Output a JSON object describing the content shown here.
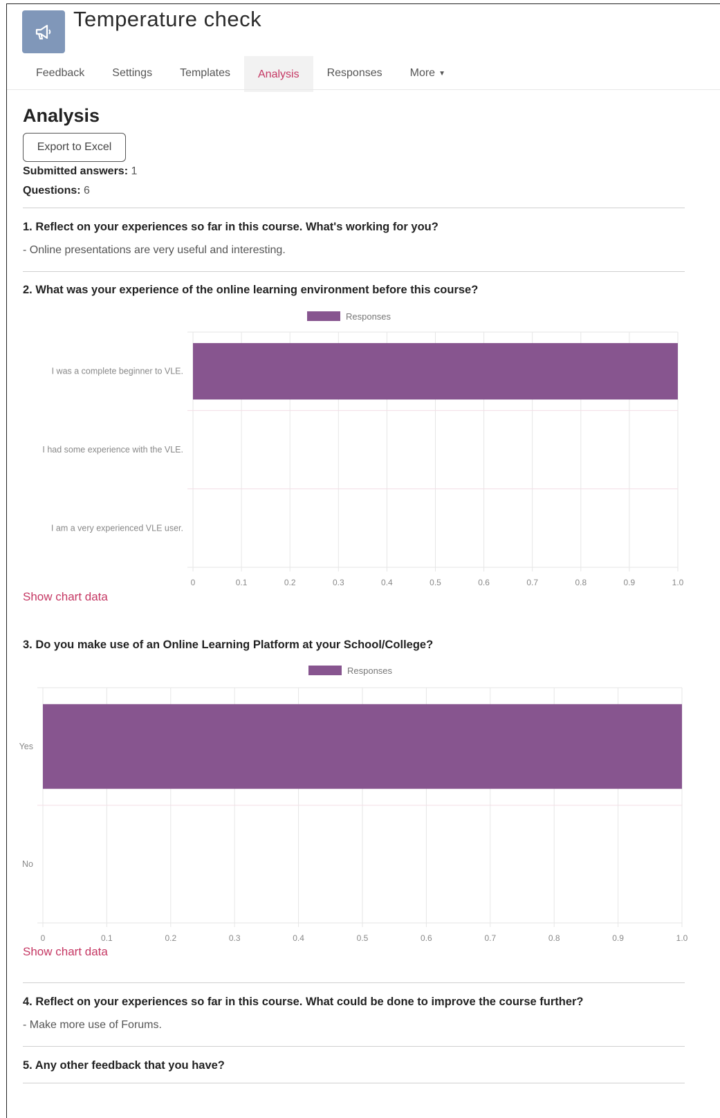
{
  "header": {
    "title": "Temperature check",
    "icon": "megaphone-icon"
  },
  "tabs": [
    {
      "label": "Feedback",
      "active": false
    },
    {
      "label": "Settings",
      "active": false
    },
    {
      "label": "Templates",
      "active": false
    },
    {
      "label": "Analysis",
      "active": true
    },
    {
      "label": "Responses",
      "active": false
    },
    {
      "label": "More",
      "active": false,
      "has_dropdown": true
    }
  ],
  "main": {
    "heading": "Analysis",
    "export_label": "Export to Excel",
    "submitted_label": "Submitted answers:",
    "submitted_value": "1",
    "questions_label": "Questions:",
    "questions_value": "6"
  },
  "questions": [
    {
      "title": "1. Reflect on your experiences so far in this course. What's working for you?",
      "answer": "- Online presentations are very useful and interesting."
    },
    {
      "title": "2. What was your experience of the online learning environment before this course?"
    },
    {
      "title": "3. Do you make use of an Online Learning Platform at your School/College?"
    },
    {
      "title": "4. Reflect on your experiences so far in this course. What could be done to improve the course further?",
      "answer": "- Make more use of Forums."
    },
    {
      "title": "5. Any other feedback that you have?"
    }
  ],
  "show_chart_data_label": "Show chart data",
  "colors": {
    "accent": "#c53763",
    "bar": "#87558f",
    "tab_active_bg": "#f2f2f2"
  },
  "chart_data": [
    {
      "type": "bar",
      "orientation": "horizontal",
      "categories": [
        "I was a complete beginner to VLE.",
        "I had some experience with the VLE.",
        "I am a very experienced VLE user."
      ],
      "series": [
        {
          "name": "Responses",
          "values": [
            1,
            0,
            0
          ]
        }
      ],
      "xlim": [
        0,
        1
      ],
      "x_ticks": [
        "0",
        "0.1",
        "0.2",
        "0.3",
        "0.4",
        "0.5",
        "0.6",
        "0.7",
        "0.8",
        "0.9",
        "1.0"
      ],
      "legend": "top",
      "grid": true
    },
    {
      "type": "bar",
      "orientation": "horizontal",
      "categories": [
        "Yes",
        "No"
      ],
      "series": [
        {
          "name": "Responses",
          "values": [
            1,
            0
          ]
        }
      ],
      "xlim": [
        0,
        1
      ],
      "x_ticks": [
        "0",
        "0.1",
        "0.2",
        "0.3",
        "0.4",
        "0.5",
        "0.6",
        "0.7",
        "0.8",
        "0.9",
        "1.0"
      ],
      "legend": "top",
      "grid": true
    }
  ]
}
